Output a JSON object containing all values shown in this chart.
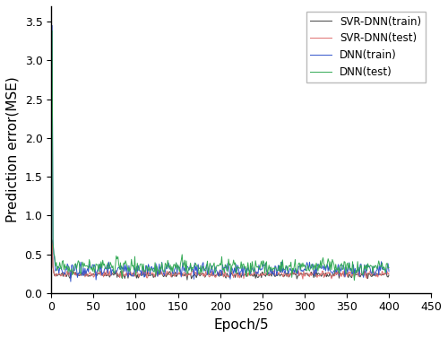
{
  "title": "",
  "xlabel": "Epoch/5",
  "ylabel": "Prediction error(MSE)",
  "xlim": [
    0,
    450
  ],
  "ylim": [
    0,
    3.7
  ],
  "yticks": [
    0.0,
    0.5,
    1.0,
    1.5,
    2.0,
    2.5,
    3.0,
    3.5
  ],
  "xticks": [
    0,
    50,
    100,
    150,
    200,
    250,
    300,
    350,
    400,
    450
  ],
  "n_epochs": 400,
  "seed": 42,
  "colors": {
    "svr_train": "#444444",
    "svr_test": "#e07070",
    "dnn_train": "#3355cc",
    "dnn_test": "#33aa55"
  },
  "legend_labels": [
    "SVR-DNN(train)",
    "SVR-DNN(test)",
    "DNN(train)",
    "DNN(test)"
  ],
  "dnn_spike": 3.45,
  "svr_spike": 0.68,
  "svr_steady_mean": 0.235,
  "svr_steady_std": 0.022,
  "dnn_train_steady_mean": 0.3,
  "dnn_train_steady_std": 0.048,
  "dnn_test_steady_mean": 0.335,
  "dnn_test_steady_std": 0.052,
  "linewidth": 0.7,
  "figsize": [
    5.0,
    3.77
  ],
  "dpi": 100
}
